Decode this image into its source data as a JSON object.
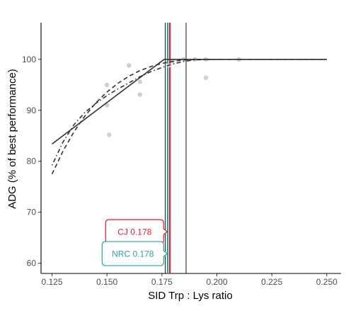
{
  "chart_data": {
    "type": "scatter",
    "xlabel": "SID Trp : Lys ratio",
    "ylabel": "ADG (% of best performance)",
    "xlim": [
      0.12,
      0.2565
    ],
    "ylim": [
      58,
      107.2
    ],
    "x_ticks": [
      {
        "value": 0.125,
        "label": "0.125"
      },
      {
        "value": 0.15,
        "label": "0.150"
      },
      {
        "value": 0.175,
        "label": "0.175"
      },
      {
        "value": 0.2,
        "label": "0.200"
      },
      {
        "value": 0.225,
        "label": "0.225"
      },
      {
        "value": 0.25,
        "label": "0.250"
      }
    ],
    "y_ticks": [
      {
        "value": 60,
        "label": "60"
      },
      {
        "value": 70,
        "label": "70"
      },
      {
        "value": 80,
        "label": "80"
      },
      {
        "value": 90,
        "label": "90"
      },
      {
        "value": 100,
        "label": "100"
      }
    ],
    "grid": false,
    "points": [
      {
        "x": 0.15,
        "y": 95.0
      },
      {
        "x": 0.15,
        "y": 91.0
      },
      {
        "x": 0.151,
        "y": 85.2
      },
      {
        "x": 0.16,
        "y": 98.8
      },
      {
        "x": 0.165,
        "y": 95.6
      },
      {
        "x": 0.165,
        "y": 93.1
      },
      {
        "x": 0.178,
        "y": 98.8
      },
      {
        "x": 0.18,
        "y": 99.7
      },
      {
        "x": 0.185,
        "y": 100.0
      },
      {
        "x": 0.19,
        "y": 100.0
      },
      {
        "x": 0.195,
        "y": 100.0
      },
      {
        "x": 0.195,
        "y": 96.4
      },
      {
        "x": 0.21,
        "y": 100.0
      }
    ],
    "series": [
      {
        "style": "solid",
        "x": [
          0.125,
          0.176,
          0.25
        ],
        "y": [
          83.4,
          100.0,
          100.0
        ]
      },
      {
        "style": "dashed",
        "x": [
          0.125,
          0.13,
          0.135,
          0.14,
          0.145,
          0.15,
          0.155,
          0.16,
          0.165,
          0.17,
          0.175,
          0.18,
          0.185,
          0.19,
          0.2,
          0.25
        ],
        "y": [
          77.5,
          82.0,
          85.8,
          88.9,
          91.5,
          93.6,
          95.3,
          96.7,
          97.8,
          98.6,
          99.2,
          99.6,
          99.9,
          100.0,
          100.0,
          100.0
        ]
      },
      {
        "style": "dotdash",
        "x": [
          0.125,
          0.13,
          0.135,
          0.14,
          0.145,
          0.15,
          0.155,
          0.16,
          0.165,
          0.17,
          0.175,
          0.18,
          0.185,
          0.19,
          0.2,
          0.25
        ],
        "y": [
          79.2,
          83.8,
          87.2,
          89.6,
          91.4,
          92.9,
          94.2,
          95.4,
          96.6,
          97.6,
          98.4,
          99.1,
          99.6,
          99.9,
          100.0,
          100.0
        ]
      }
    ],
    "vlines": [
      {
        "x": 0.1765,
        "color": "#000000",
        "kind": "ci"
      },
      {
        "x": 0.1776,
        "color": "#29a3a3",
        "kind": "estimate"
      },
      {
        "x": 0.1786,
        "color": "#e8192c",
        "kind": "estimate"
      },
      {
        "x": 0.186,
        "color": "#000000",
        "kind": "ci"
      }
    ],
    "annotations": [
      {
        "text": "CJ 0.178",
        "color": "#e8192c",
        "y": 66.2
      },
      {
        "text": "NRC 0.178",
        "color": "#29a3a3",
        "y": 61.9
      }
    ]
  }
}
